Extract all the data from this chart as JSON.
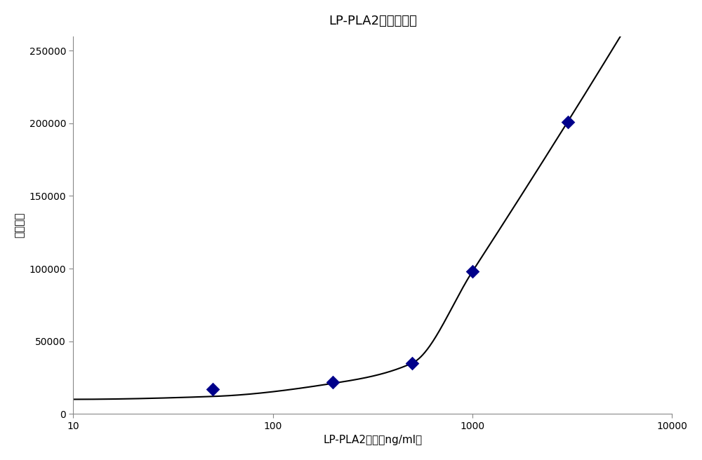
{
  "title": "LP-PLA2标准曲线图",
  "xlabel": "LP-PLA2浓度（ng/ml）",
  "ylabel": "荧光计数",
  "scatter_x": [
    50,
    200,
    500,
    1000,
    3000
  ],
  "scatter_y": [
    17000,
    22000,
    35000,
    98000,
    201000
  ],
  "scatter_color": "#00008B",
  "marker": "D",
  "marker_size": 10,
  "xlim_log": [
    10,
    10000
  ],
  "ylim": [
    0,
    260000
  ],
  "yticks": [
    0,
    50000,
    100000,
    150000,
    200000,
    250000
  ],
  "xticks": [
    10,
    100,
    1000,
    10000
  ],
  "curve_color": "#000000",
  "curve_linewidth": 1.5,
  "background_color": "#ffffff",
  "title_fontsize": 13,
  "label_fontsize": 11,
  "tick_fontsize": 10
}
